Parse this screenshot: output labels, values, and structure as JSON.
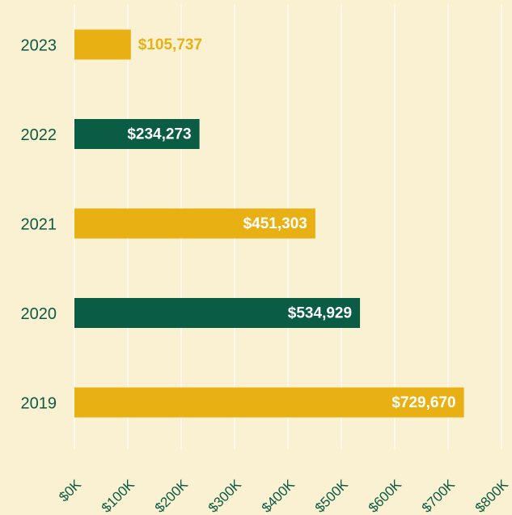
{
  "chart_data": {
    "type": "bar",
    "orientation": "horizontal",
    "categories": [
      "2023",
      "2022",
      "2021",
      "2020",
      "2019"
    ],
    "values": [
      105737,
      234273,
      451303,
      534929,
      729670
    ],
    "value_labels": [
      "$105,737",
      "$234,273",
      "$451,303",
      "$534,929",
      "$729,670"
    ],
    "colors": [
      "#e8b013",
      "#0a5c45",
      "#e8b013",
      "#0a5c45",
      "#e8b013"
    ],
    "xlim": [
      0,
      800000
    ],
    "xticks": [
      {
        "value": 0,
        "label": "$0K"
      },
      {
        "value": 100000,
        "label": "$100K"
      },
      {
        "value": 200000,
        "label": "$200K"
      },
      {
        "value": 300000,
        "label": "$300K"
      },
      {
        "value": 400000,
        "label": "$400K"
      },
      {
        "value": 500000,
        "label": "$500K"
      },
      {
        "value": 600000,
        "label": "$600K"
      },
      {
        "value": 700000,
        "label": "$700K"
      },
      {
        "value": 800000,
        "label": "$800K"
      }
    ],
    "grid": true
  }
}
